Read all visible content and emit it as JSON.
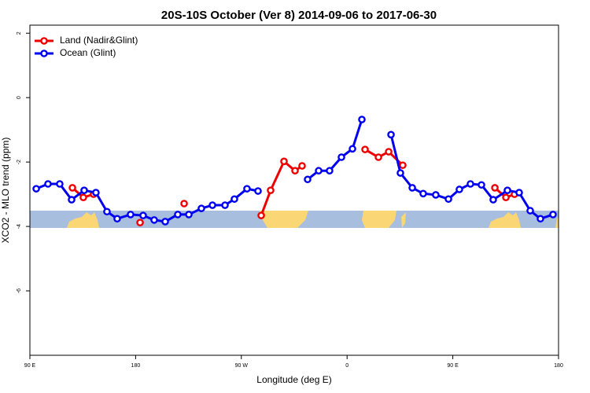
{
  "chart_data": {
    "type": "line",
    "title": "20S-10S October (Ver 8)   2014-09-06 to 2017-06-30",
    "x_label": "Longitude (deg E)",
    "y_label": "XCO2 - MLO trend (ppm)",
    "xlim": [
      90,
      540
    ],
    "xticks": [
      {
        "value": 90,
        "label": "90 E"
      },
      {
        "value": 180,
        "label": "180"
      },
      {
        "value": 270,
        "label": "90 W"
      },
      {
        "value": 360,
        "label": "0"
      },
      {
        "value": 450,
        "label": "90 E"
      },
      {
        "value": 540,
        "label": "180"
      }
    ],
    "ylim": [
      -8,
      2.25
    ],
    "yticks": [
      2,
      0,
      -2,
      -4,
      -6
    ],
    "legend": "top-left",
    "series": [
      {
        "name": "Land (Nadir&Glint)",
        "color": "#ee0000",
        "x": [
          126.2,
          135.5,
          144.2,
          null,
          183.8,
          null,
          221.3,
          null,
          286.9,
          294.9,
          306.3,
          315.7,
          321.7,
          null,
          375.3,
          386.7,
          395.4,
          407.4,
          null,
          485.8,
          495.2,
          502.5
        ],
        "values": [
          -2.8,
          -3.1,
          -3.0,
          null,
          -3.88,
          null,
          -3.29,
          null,
          -3.66,
          -2.88,
          -1.98,
          -2.27,
          -2.12,
          null,
          -1.61,
          -1.85,
          -1.68,
          -2.1,
          null,
          -2.8,
          -3.1,
          -3.0
        ]
      },
      {
        "name": "Ocean (Glint)",
        "color": "#0000ee",
        "x": [
          95.4,
          105.4,
          115.4,
          125.5,
          136.2,
          146.2,
          155.6,
          164.3,
          175.7,
          186.4,
          195.8,
          205.2,
          215.9,
          225.3,
          236.0,
          245.4,
          256.1,
          264.1,
          274.8,
          284.2,
          null,
          326.4,
          335.8,
          345.1,
          355.2,
          364.6,
          372.6,
          null,
          397.4,
          405.4,
          415.5,
          424.8,
          435.5,
          446.3,
          455.6,
          465.0,
          474.4,
          484.4,
          496.5,
          506.5,
          515.9,
          524.6,
          535.3
        ],
        "values": [
          -2.83,
          -2.68,
          -2.68,
          -3.17,
          -2.88,
          -2.95,
          -3.54,
          -3.76,
          -3.63,
          -3.66,
          -3.8,
          -3.85,
          -3.63,
          -3.63,
          -3.44,
          -3.34,
          -3.34,
          -3.15,
          -2.83,
          -2.9,
          null,
          -2.54,
          -2.27,
          -2.27,
          -1.85,
          -1.59,
          -0.68,
          null,
          -1.15,
          -2.34,
          -2.8,
          -2.98,
          -3.02,
          -3.15,
          -2.85,
          -2.68,
          -2.71,
          -3.17,
          -2.88,
          -2.95,
          -3.51,
          -3.76,
          -3.63
        ]
      }
    ]
  }
}
